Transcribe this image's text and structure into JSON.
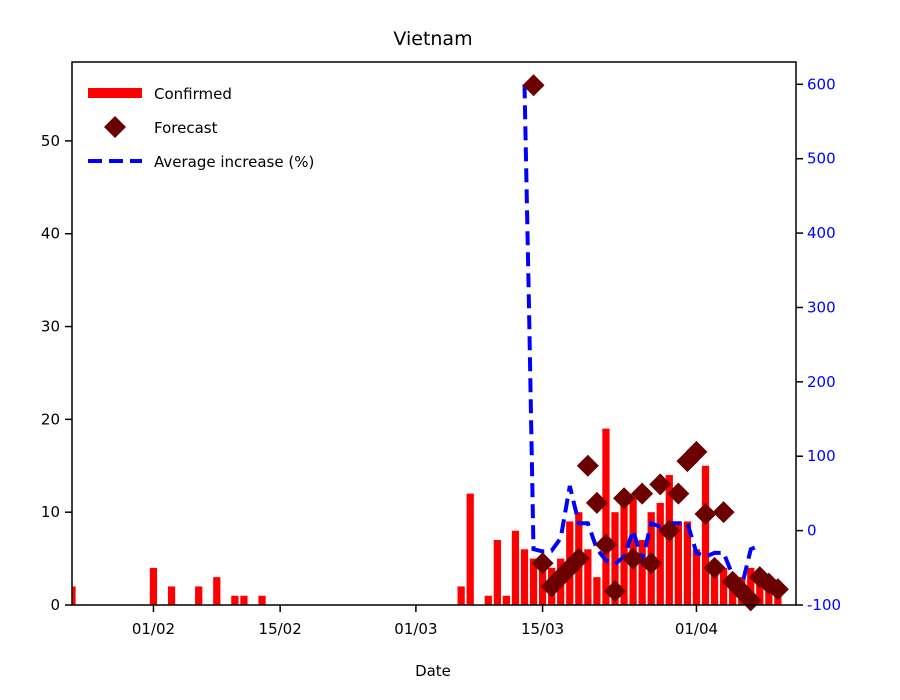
{
  "chart_data": {
    "type": "bar",
    "title": "Vietnam",
    "xlabel": "Date",
    "ylabel": "",
    "y2label": "",
    "x_start": "23/01",
    "x_end": "12/04",
    "ylim": [
      0,
      58.5
    ],
    "y2lim": [
      -100,
      630
    ],
    "yticks": [
      0,
      10,
      20,
      30,
      40,
      50
    ],
    "y2ticks": [
      -100,
      0,
      100,
      200,
      300,
      400,
      500,
      600
    ],
    "xticks": [
      "01/02",
      "15/02",
      "01/03",
      "15/03",
      "01/04"
    ],
    "legend_position": "upper-left",
    "grid": false,
    "colors": {
      "confirmed": "#ff0000",
      "forecast": "#6b0000",
      "average": "#0000ff",
      "right_axis": "#0000ff"
    },
    "series": [
      {
        "name": "Confirmed",
        "kind": "bar",
        "axis": "left",
        "points": [
          [
            "23/01",
            2
          ],
          [
            "01/02",
            4
          ],
          [
            "03/02",
            2
          ],
          [
            "06/02",
            2
          ],
          [
            "08/02",
            3
          ],
          [
            "10/02",
            1
          ],
          [
            "11/02",
            1
          ],
          [
            "13/02",
            1
          ],
          [
            "06/03",
            2
          ],
          [
            "07/03",
            12
          ],
          [
            "09/03",
            1
          ],
          [
            "10/03",
            7
          ],
          [
            "11/03",
            1
          ],
          [
            "12/03",
            8
          ],
          [
            "13/03",
            6
          ],
          [
            "14/03",
            5
          ],
          [
            "15/03",
            4
          ],
          [
            "16/03",
            4
          ],
          [
            "17/03",
            5
          ],
          [
            "18/03",
            9
          ],
          [
            "19/03",
            10
          ],
          [
            "20/03",
            6
          ],
          [
            "21/03",
            3
          ],
          [
            "22/03",
            19
          ],
          [
            "23/03",
            10
          ],
          [
            "24/03",
            12
          ],
          [
            "25/03",
            12
          ],
          [
            "26/03",
            7
          ],
          [
            "27/03",
            10
          ],
          [
            "28/03",
            11
          ],
          [
            "29/03",
            14
          ],
          [
            "30/03",
            9
          ],
          [
            "31/03",
            9
          ],
          [
            "01/04",
            6
          ],
          [
            "02/04",
            15
          ],
          [
            "03/04",
            4
          ],
          [
            "04/04",
            4
          ],
          [
            "05/04",
            3
          ],
          [
            "06/04",
            3
          ],
          [
            "07/04",
            4
          ],
          [
            "08/04",
            3
          ],
          [
            "09/04",
            3
          ],
          [
            "10/04",
            2
          ]
        ]
      },
      {
        "name": "Forecast",
        "kind": "scatter",
        "axis": "left",
        "points": [
          [
            "14/03",
            56
          ],
          [
            "15/03",
            4.5
          ],
          [
            "16/03",
            2
          ],
          [
            "17/03",
            3
          ],
          [
            "18/03",
            4
          ],
          [
            "19/03",
            5
          ],
          [
            "20/03",
            15
          ],
          [
            "21/03",
            11
          ],
          [
            "22/03",
            6.5
          ],
          [
            "23/03",
            1.5
          ],
          [
            "24/03",
            11.5
          ],
          [
            "25/03",
            5
          ],
          [
            "26/03",
            12
          ],
          [
            "27/03",
            4.5
          ],
          [
            "28/03",
            13
          ],
          [
            "29/03",
            8
          ],
          [
            "30/03",
            12
          ],
          [
            "31/03",
            15.5
          ],
          [
            "01/04",
            16.5
          ],
          [
            "02/04",
            9.8
          ],
          [
            "03/04",
            4
          ],
          [
            "04/04",
            10
          ],
          [
            "05/04",
            2.5
          ],
          [
            "06/04",
            1.5
          ],
          [
            "07/04",
            0.5
          ],
          [
            "08/04",
            3
          ],
          [
            "09/04",
            2.3
          ],
          [
            "10/04",
            1.7
          ]
        ]
      },
      {
        "name": "Average increase (%)",
        "kind": "line",
        "axis": "right",
        "points": [
          [
            "13/03",
            600
          ],
          [
            "13.5/03",
            300
          ],
          [
            "14/03",
            -25
          ],
          [
            "15/03",
            -28
          ],
          [
            "16/03",
            -27
          ],
          [
            "17/03",
            -10
          ],
          [
            "18/03",
            60
          ],
          [
            "19/03",
            10
          ],
          [
            "20/03",
            10
          ],
          [
            "21/03",
            -25
          ],
          [
            "22/03",
            -40
          ],
          [
            "23/03",
            -45
          ],
          [
            "24/03",
            -35
          ],
          [
            "25/03",
            0
          ],
          [
            "26/03",
            -40
          ],
          [
            "27/03",
            10
          ],
          [
            "28/03",
            5
          ],
          [
            "29/03",
            10
          ],
          [
            "30/03",
            10
          ],
          [
            "31/03",
            10
          ],
          [
            "01/04",
            -30
          ],
          [
            "02/04",
            -35
          ],
          [
            "03/04",
            -30
          ],
          [
            "04/04",
            -30
          ],
          [
            "05/04",
            -60
          ],
          [
            "06/04",
            -75
          ],
          [
            "07/04",
            -25
          ],
          [
            "08/04",
            -20
          ]
        ]
      }
    ]
  }
}
